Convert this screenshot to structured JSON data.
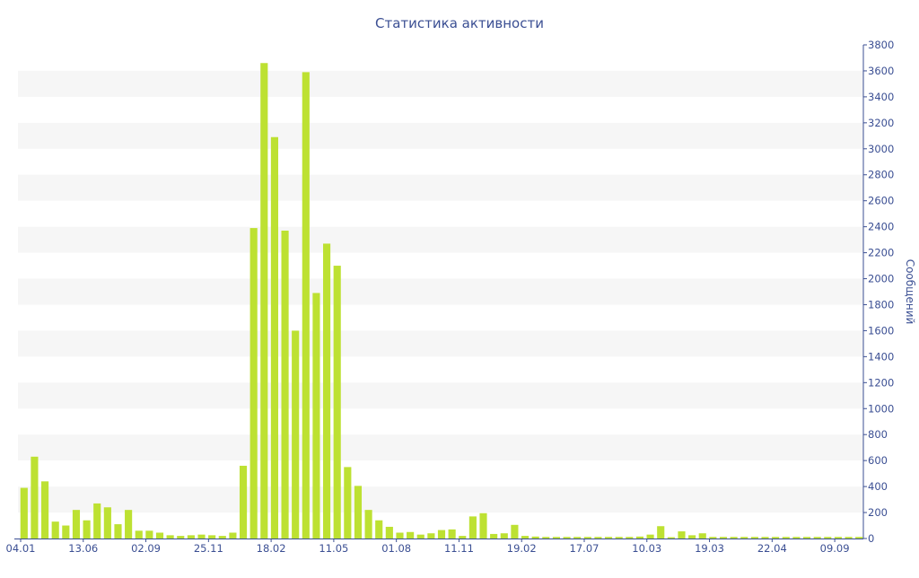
{
  "chart_data": {
    "type": "bar",
    "title": "Статистика активности",
    "ylabel": "Сообщений",
    "xlabel": "",
    "ylim": [
      0,
      3800
    ],
    "y_ticks": [
      0,
      200,
      400,
      600,
      800,
      1000,
      1200,
      1400,
      1600,
      1800,
      2000,
      2200,
      2400,
      2600,
      2800,
      3000,
      3200,
      3400,
      3600,
      3800
    ],
    "y_axis_side": "right",
    "grid": "alternating horizontal bands",
    "x_tick_labels": [
      {
        "index": 0,
        "label": "04.01"
      },
      {
        "index": 6,
        "label": "13.06"
      },
      {
        "index": 12,
        "label": "02.09"
      },
      {
        "index": 18,
        "label": "25.11"
      },
      {
        "index": 24,
        "label": "18.02"
      },
      {
        "index": 30,
        "label": "11.05"
      },
      {
        "index": 36,
        "label": "01.08"
      },
      {
        "index": 42,
        "label": "11.11"
      },
      {
        "index": 48,
        "label": "19.02"
      },
      {
        "index": 54,
        "label": "17.07"
      },
      {
        "index": 60,
        "label": "10.03"
      },
      {
        "index": 66,
        "label": "19.03"
      },
      {
        "index": 72,
        "label": "22.04"
      },
      {
        "index": 78,
        "label": "09.09"
      }
    ],
    "values": [
      390,
      630,
      440,
      130,
      100,
      220,
      140,
      270,
      240,
      110,
      220,
      60,
      60,
      45,
      25,
      20,
      25,
      30,
      25,
      20,
      45,
      560,
      2390,
      3660,
      3090,
      2370,
      1600,
      3590,
      1890,
      2270,
      2100,
      550,
      405,
      220,
      140,
      90,
      45,
      50,
      30,
      40,
      65,
      70,
      20,
      170,
      195,
      35,
      40,
      105,
      20,
      15,
      12,
      12,
      12,
      12,
      12,
      12,
      12,
      12,
      12,
      15,
      30,
      95,
      10,
      55,
      25,
      40,
      12,
      12,
      12,
      12,
      12,
      12,
      12,
      12,
      12,
      12,
      12,
      12,
      12,
      12,
      12
    ],
    "bar_color": "#bde132"
  }
}
